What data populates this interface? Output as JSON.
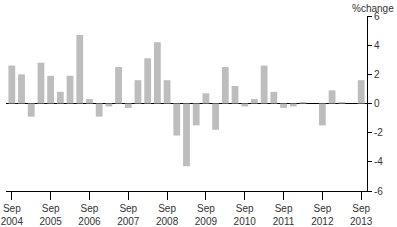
{
  "chart_data": {
    "type": "bar",
    "y_label": "%change",
    "categories": [
      "Sep 2004",
      null,
      null,
      null,
      "Sep 2005",
      null,
      null,
      null,
      "Sep 2006",
      null,
      null,
      null,
      "Sep 2007",
      null,
      null,
      null,
      "Sep 2008",
      null,
      null,
      null,
      "Sep 2009",
      null,
      null,
      null,
      "Sep 2010",
      null,
      null,
      null,
      "Sep 2011",
      null,
      null,
      null,
      "Sep 2012",
      null,
      null,
      null,
      "Sep 2013"
    ],
    "values": [
      2.6,
      2.0,
      -0.9,
      2.8,
      1.9,
      0.8,
      1.9,
      4.7,
      0.3,
      -0.9,
      -0.2,
      2.5,
      -0.3,
      1.6,
      3.1,
      4.2,
      1.6,
      -2.2,
      -4.3,
      -1.5,
      0.7,
      -1.8,
      2.5,
      1.2,
      -0.2,
      0.3,
      2.6,
      0.8,
      -0.3,
      -0.2,
      0.1,
      0.0,
      -1.5,
      0.9,
      0.1,
      0.0,
      1.6
    ],
    "color": "#bdbdbd",
    "ylim": [
      -6,
      6
    ],
    "yticks": [
      -6,
      -4,
      -2,
      0,
      2,
      4,
      6
    ],
    "grid": false
  }
}
